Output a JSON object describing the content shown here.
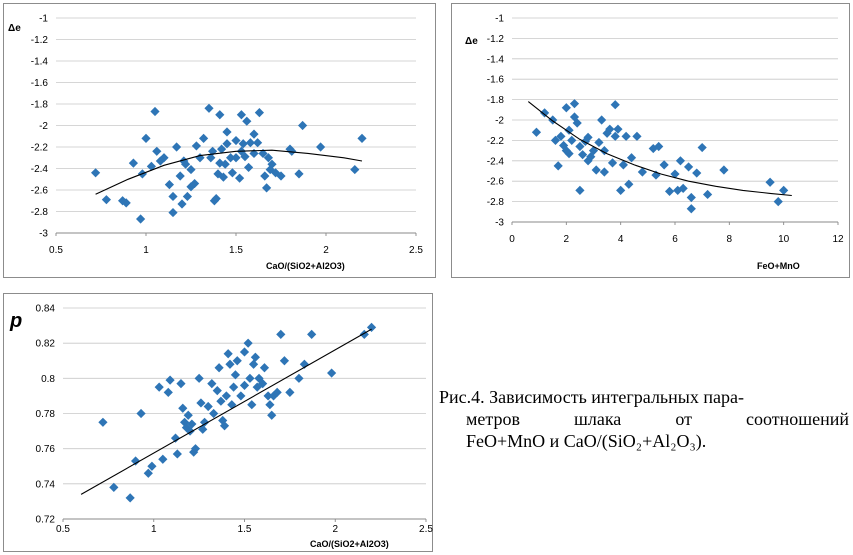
{
  "chart_data": [
    {
      "type": "scatter",
      "ylabel": "Δe",
      "xlabel": "CaO/(SiO2+Al2O3)",
      "xlim": [
        0.5,
        2.5
      ],
      "ylim": [
        -3,
        -1
      ],
      "xticks": [
        "0.5",
        "1",
        "1.5",
        "2",
        "2.5"
      ],
      "yticks": [
        "-1",
        "-1.2",
        "-1.4",
        "-1.6",
        "-1.8",
        "-2",
        "-2.2",
        "-2.4",
        "-2.6",
        "-2.8",
        "-3"
      ],
      "grid": true,
      "marker_color": "#2e75b6",
      "trend": "polynomial",
      "points": [
        [
          0.72,
          -2.44
        ],
        [
          0.78,
          -2.69
        ],
        [
          0.87,
          -2.7
        ],
        [
          0.89,
          -2.72
        ],
        [
          0.93,
          -2.35
        ],
        [
          0.97,
          -2.87
        ],
        [
          0.98,
          -2.45
        ],
        [
          1.0,
          -2.12
        ],
        [
          1.03,
          -2.38
        ],
        [
          1.05,
          -1.87
        ],
        [
          1.06,
          -2.24
        ],
        [
          1.08,
          -2.33
        ],
        [
          1.1,
          -2.3
        ],
        [
          1.13,
          -2.55
        ],
        [
          1.15,
          -2.66
        ],
        [
          1.15,
          -2.81
        ],
        [
          1.17,
          -2.2
        ],
        [
          1.19,
          -2.47
        ],
        [
          1.2,
          -2.73
        ],
        [
          1.21,
          -2.33
        ],
        [
          1.22,
          -2.36
        ],
        [
          1.23,
          -2.66
        ],
        [
          1.25,
          -2.41
        ],
        [
          1.25,
          -2.57
        ],
        [
          1.27,
          -2.54
        ],
        [
          1.28,
          -2.19
        ],
        [
          1.3,
          -2.3
        ],
        [
          1.32,
          -2.12
        ],
        [
          1.35,
          -1.84
        ],
        [
          1.36,
          -2.3
        ],
        [
          1.37,
          -2.24
        ],
        [
          1.38,
          -2.7
        ],
        [
          1.39,
          -2.68
        ],
        [
          1.4,
          -2.45
        ],
        [
          1.41,
          -2.35
        ],
        [
          1.41,
          -1.9
        ],
        [
          1.42,
          -2.22
        ],
        [
          1.43,
          -2.48
        ],
        [
          1.44,
          -2.36
        ],
        [
          1.45,
          -2.17
        ],
        [
          1.45,
          -2.06
        ],
        [
          1.47,
          -2.3
        ],
        [
          1.48,
          -2.44
        ],
        [
          1.5,
          -2.3
        ],
        [
          1.5,
          -2.14
        ],
        [
          1.52,
          -2.49
        ],
        [
          1.53,
          -1.9
        ],
        [
          1.53,
          -2.24
        ],
        [
          1.54,
          -2.17
        ],
        [
          1.55,
          -2.29
        ],
        [
          1.56,
          -1.96
        ],
        [
          1.57,
          -2.39
        ],
        [
          1.58,
          -2.16
        ],
        [
          1.6,
          -2.08
        ],
        [
          1.6,
          -2.26
        ],
        [
          1.62,
          -2.16
        ],
        [
          1.63,
          -1.88
        ],
        [
          1.65,
          -2.26
        ],
        [
          1.66,
          -2.47
        ],
        [
          1.67,
          -2.58
        ],
        [
          1.68,
          -2.3
        ],
        [
          1.69,
          -2.41
        ],
        [
          1.7,
          -2.36
        ],
        [
          1.72,
          -2.44
        ],
        [
          1.75,
          -2.47
        ],
        [
          1.8,
          -2.22
        ],
        [
          1.81,
          -2.24
        ],
        [
          1.85,
          -2.45
        ],
        [
          1.87,
          -2.0
        ],
        [
          1.97,
          -2.2
        ],
        [
          2.16,
          -2.41
        ],
        [
          2.2,
          -2.12
        ]
      ],
      "trend_points": [
        [
          0.72,
          -2.64
        ],
        [
          0.9,
          -2.5
        ],
        [
          1.1,
          -2.37
        ],
        [
          1.3,
          -2.28
        ],
        [
          1.5,
          -2.24
        ],
        [
          1.7,
          -2.23
        ],
        [
          1.9,
          -2.26
        ],
        [
          2.1,
          -2.3
        ],
        [
          2.2,
          -2.33
        ]
      ]
    },
    {
      "type": "scatter",
      "ylabel": "Δe",
      "xlabel": "FeO+MnO",
      "xlim": [
        0,
        12
      ],
      "ylim": [
        -3,
        -1
      ],
      "xticks": [
        "0",
        "2",
        "4",
        "6",
        "8",
        "10",
        "12"
      ],
      "yticks": [
        "-1",
        "-1.2",
        "-1.4",
        "-1.6",
        "-1.8",
        "-2",
        "-2.2",
        "-2.4",
        "-2.6",
        "-2.8",
        "-3"
      ],
      "grid": true,
      "marker_color": "#2e75b6",
      "trend": "polynomial",
      "points": [
        [
          0.9,
          -2.12
        ],
        [
          1.2,
          -1.93
        ],
        [
          1.5,
          -2.0
        ],
        [
          1.6,
          -2.2
        ],
        [
          1.7,
          -2.45
        ],
        [
          1.8,
          -2.16
        ],
        [
          1.9,
          -2.25
        ],
        [
          2.0,
          -2.3
        ],
        [
          2.0,
          -1.88
        ],
        [
          2.1,
          -2.1
        ],
        [
          2.1,
          -2.33
        ],
        [
          2.2,
          -2.2
        ],
        [
          2.3,
          -1.84
        ],
        [
          2.3,
          -1.97
        ],
        [
          2.4,
          -2.03
        ],
        [
          2.5,
          -2.26
        ],
        [
          2.5,
          -2.69
        ],
        [
          2.6,
          -2.34
        ],
        [
          2.7,
          -2.21
        ],
        [
          2.8,
          -2.4
        ],
        [
          2.8,
          -2.17
        ],
        [
          2.9,
          -2.36
        ],
        [
          3.0,
          -2.3
        ],
        [
          3.1,
          -2.49
        ],
        [
          3.2,
          -2.22
        ],
        [
          3.3,
          -2.0
        ],
        [
          3.4,
          -2.51
        ],
        [
          3.4,
          -2.3
        ],
        [
          3.5,
          -2.13
        ],
        [
          3.6,
          -2.09
        ],
        [
          3.7,
          -2.42
        ],
        [
          3.8,
          -2.16
        ],
        [
          3.8,
          -1.85
        ],
        [
          3.9,
          -2.09
        ],
        [
          4.0,
          -2.69
        ],
        [
          4.1,
          -2.44
        ],
        [
          4.2,
          -2.16
        ],
        [
          4.3,
          -2.63
        ],
        [
          4.4,
          -2.37
        ],
        [
          4.6,
          -2.16
        ],
        [
          4.8,
          -2.51
        ],
        [
          5.2,
          -2.28
        ],
        [
          5.3,
          -2.54
        ],
        [
          5.4,
          -2.26
        ],
        [
          5.6,
          -2.44
        ],
        [
          5.8,
          -2.7
        ],
        [
          6.0,
          -2.53
        ],
        [
          6.1,
          -2.69
        ],
        [
          6.2,
          -2.4
        ],
        [
          6.3,
          -2.67
        ],
        [
          6.5,
          -2.46
        ],
        [
          6.6,
          -2.87
        ],
        [
          6.6,
          -2.76
        ],
        [
          6.8,
          -2.52
        ],
        [
          7.0,
          -2.27
        ],
        [
          7.2,
          -2.73
        ],
        [
          7.8,
          -2.49
        ],
        [
          9.5,
          -2.61
        ],
        [
          9.8,
          -2.8
        ],
        [
          10.0,
          -2.69
        ]
      ],
      "trend_points": [
        [
          0.6,
          -1.82
        ],
        [
          1.5,
          -2.01
        ],
        [
          2.5,
          -2.19
        ],
        [
          3.5,
          -2.33
        ],
        [
          4.5,
          -2.44
        ],
        [
          5.5,
          -2.53
        ],
        [
          6.5,
          -2.6
        ],
        [
          7.5,
          -2.65
        ],
        [
          8.5,
          -2.69
        ],
        [
          9.5,
          -2.72
        ],
        [
          10.3,
          -2.74
        ]
      ]
    },
    {
      "type": "scatter",
      "ylabel": "p",
      "xlabel": "CaO/(SiO2+Al2O3)",
      "xlim": [
        0.5,
        2.5
      ],
      "ylim": [
        0.72,
        0.84
      ],
      "xticks": [
        "0.5",
        "1",
        "1.5",
        "2",
        "2.5"
      ],
      "yticks": [
        "0.84",
        "0.82",
        "0.8",
        "0.78",
        "0.76",
        "0.74",
        "0.72"
      ],
      "grid": true,
      "marker_color": "#2e75b6",
      "trend": "linear",
      "points": [
        [
          0.72,
          0.775
        ],
        [
          0.78,
          0.738
        ],
        [
          0.87,
          0.732
        ],
        [
          0.9,
          0.753
        ],
        [
          0.93,
          0.78
        ],
        [
          0.97,
          0.746
        ],
        [
          0.99,
          0.75
        ],
        [
          1.03,
          0.795
        ],
        [
          1.05,
          0.754
        ],
        [
          1.08,
          0.792
        ],
        [
          1.09,
          0.799
        ],
        [
          1.12,
          0.766
        ],
        [
          1.13,
          0.757
        ],
        [
          1.15,
          0.797
        ],
        [
          1.16,
          0.783
        ],
        [
          1.17,
          0.775
        ],
        [
          1.18,
          0.772
        ],
        [
          1.19,
          0.779
        ],
        [
          1.2,
          0.77
        ],
        [
          1.21,
          0.774
        ],
        [
          1.22,
          0.758
        ],
        [
          1.23,
          0.76
        ],
        [
          1.25,
          0.8
        ],
        [
          1.26,
          0.786
        ],
        [
          1.27,
          0.771
        ],
        [
          1.28,
          0.775
        ],
        [
          1.3,
          0.784
        ],
        [
          1.32,
          0.797
        ],
        [
          1.33,
          0.78
        ],
        [
          1.35,
          0.793
        ],
        [
          1.36,
          0.806
        ],
        [
          1.37,
          0.787
        ],
        [
          1.38,
          0.776
        ],
        [
          1.39,
          0.773
        ],
        [
          1.4,
          0.79
        ],
        [
          1.41,
          0.814
        ],
        [
          1.42,
          0.808
        ],
        [
          1.43,
          0.785
        ],
        [
          1.44,
          0.795
        ],
        [
          1.45,
          0.802
        ],
        [
          1.46,
          0.81
        ],
        [
          1.48,
          0.79
        ],
        [
          1.5,
          0.815
        ],
        [
          1.5,
          0.796
        ],
        [
          1.52,
          0.82
        ],
        [
          1.53,
          0.8
        ],
        [
          1.54,
          0.785
        ],
        [
          1.55,
          0.808
        ],
        [
          1.56,
          0.812
        ],
        [
          1.57,
          0.795
        ],
        [
          1.58,
          0.8
        ],
        [
          1.6,
          0.797
        ],
        [
          1.61,
          0.806
        ],
        [
          1.63,
          0.79
        ],
        [
          1.64,
          0.785
        ],
        [
          1.65,
          0.779
        ],
        [
          1.66,
          0.79
        ],
        [
          1.68,
          0.792
        ],
        [
          1.7,
          0.825
        ],
        [
          1.72,
          0.81
        ],
        [
          1.75,
          0.792
        ],
        [
          1.8,
          0.8
        ],
        [
          1.83,
          0.808
        ],
        [
          1.87,
          0.825
        ],
        [
          1.98,
          0.803
        ],
        [
          2.16,
          0.825
        ],
        [
          2.2,
          0.829
        ]
      ],
      "trend_points": [
        [
          0.6,
          0.734
        ],
        [
          2.2,
          0.828
        ]
      ]
    }
  ],
  "caption": {
    "line1": "Рис.4. Зависимость интегральных пара-",
    "line2": [
      "метров",
      "шлака",
      "от",
      "соотношений"
    ],
    "line3": "FeO+MnO и CaO/(SiO₂+Al₂O₃)."
  }
}
